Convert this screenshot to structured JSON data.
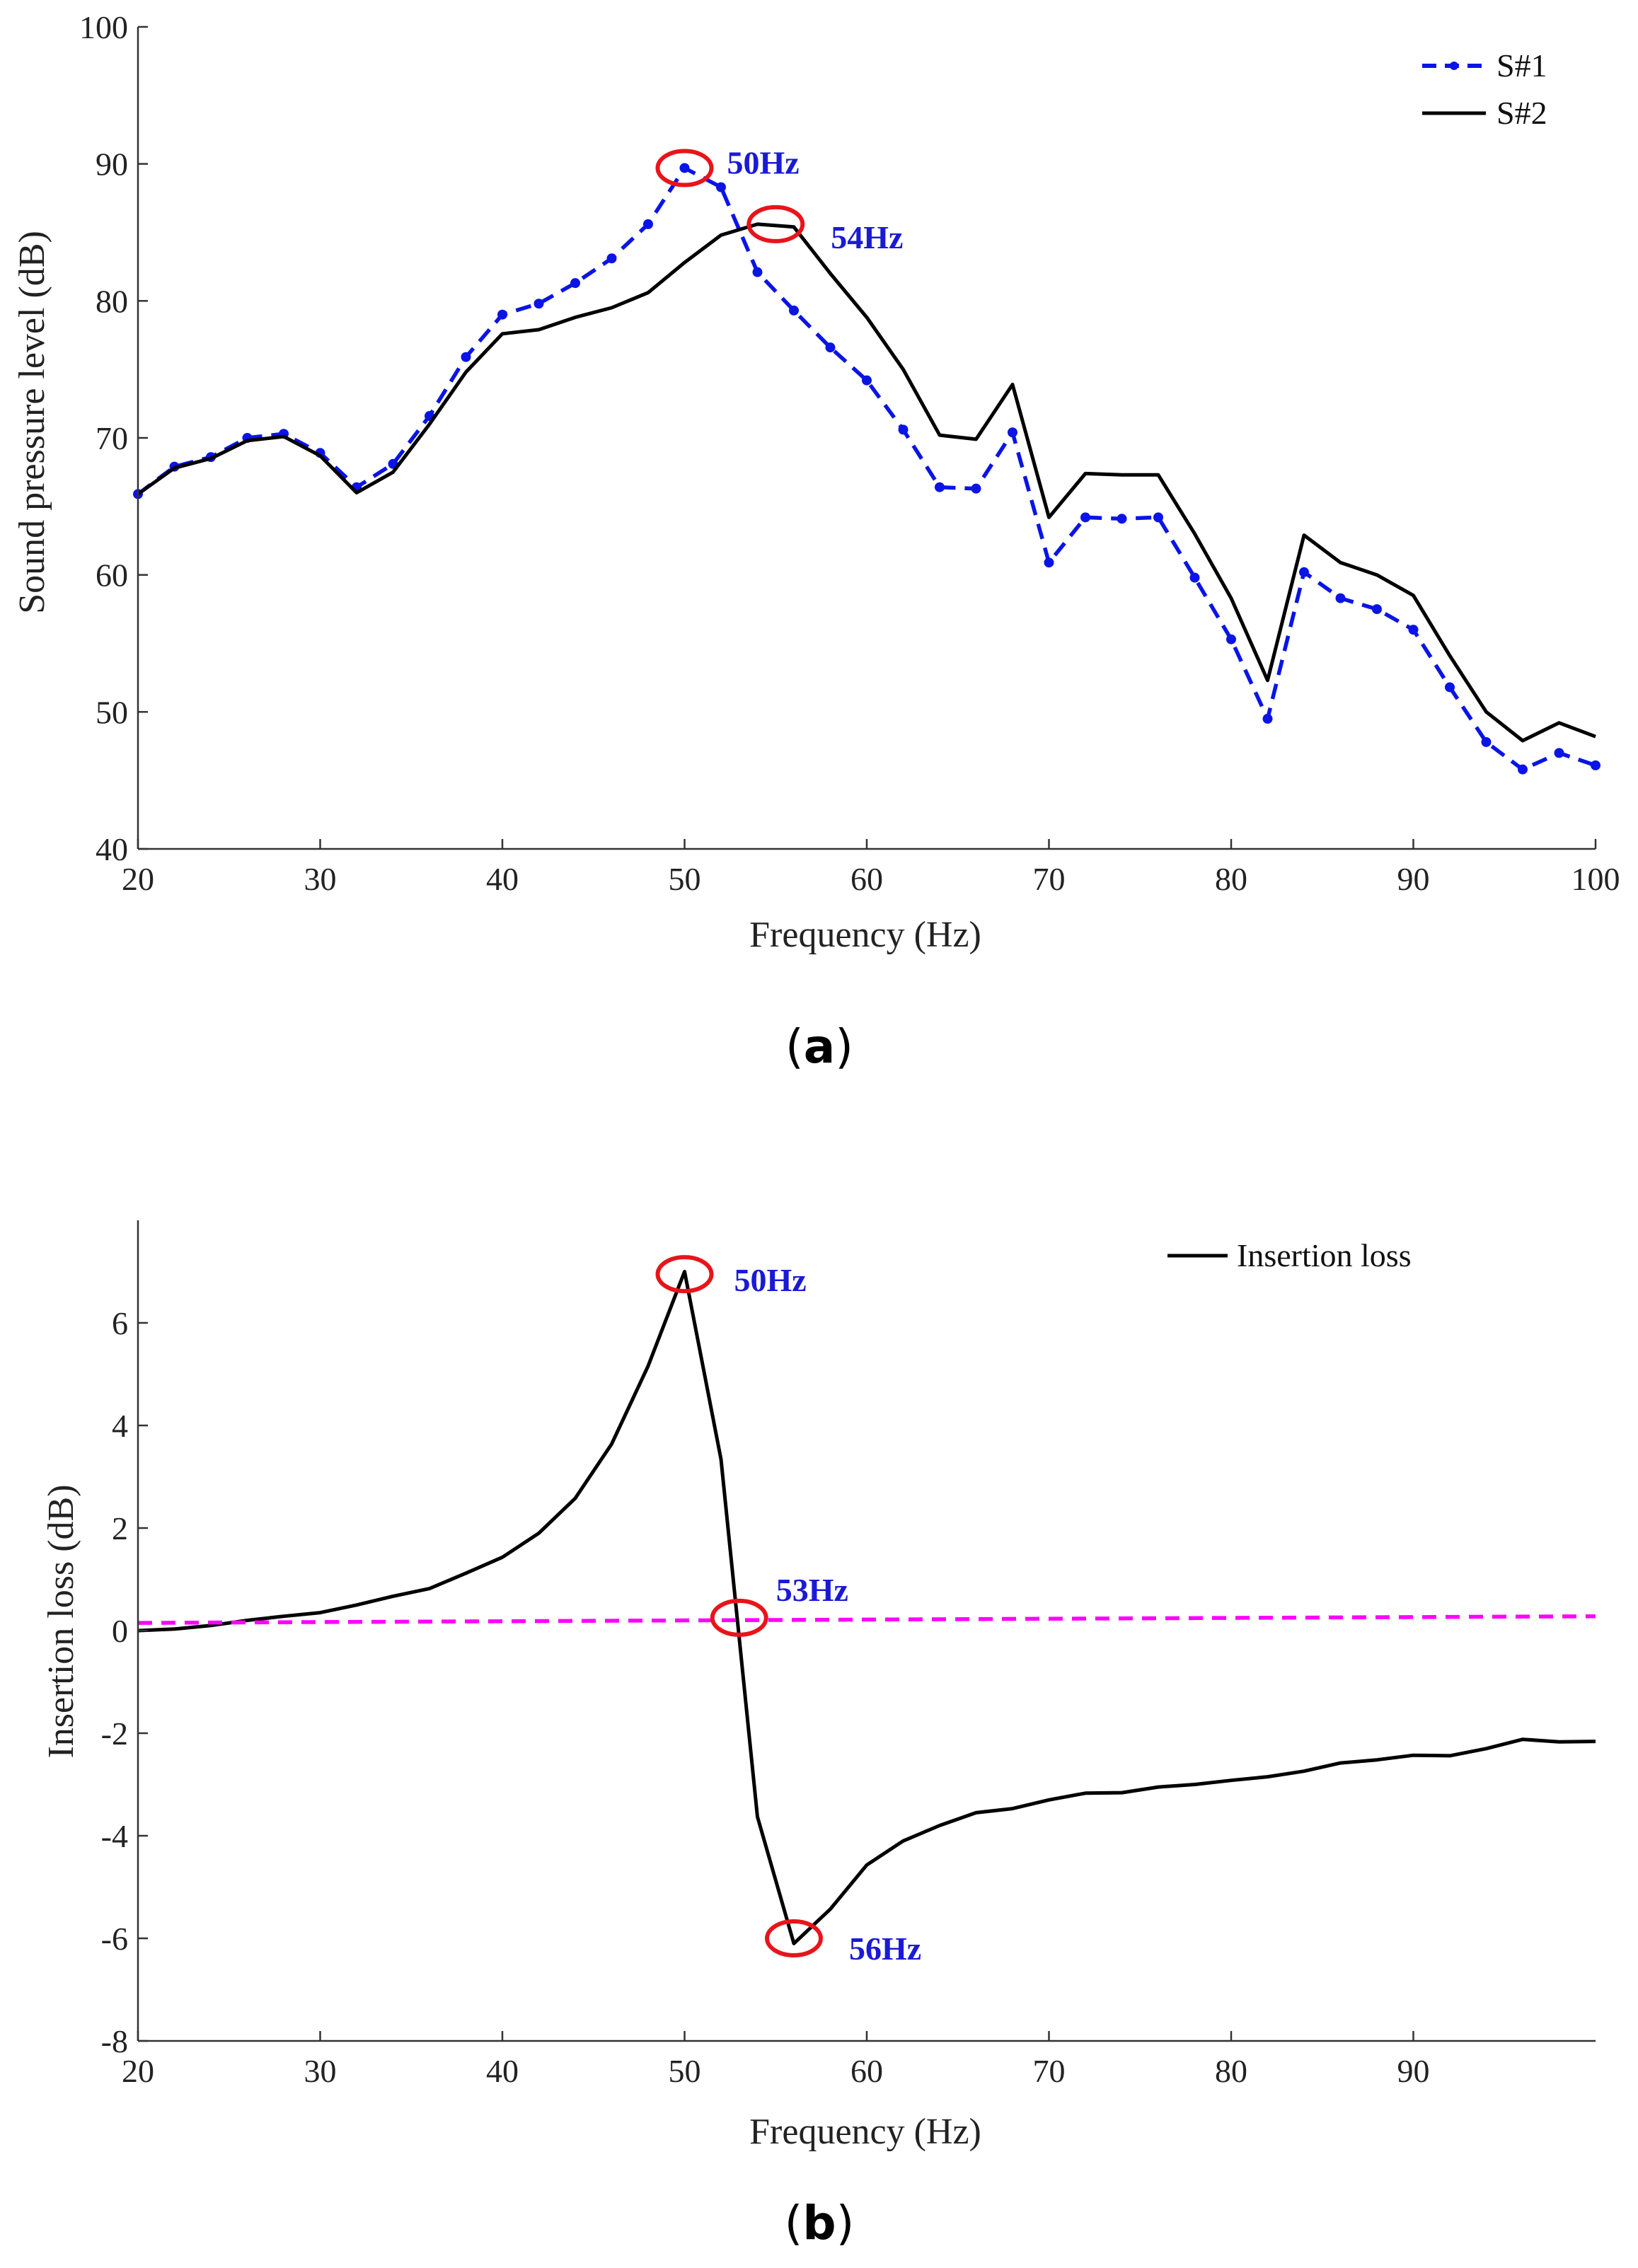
{
  "colors": {
    "s1": "#0a14e6",
    "s2": "#000000",
    "il": "#000000",
    "ref": "#ff00ff",
    "circle": "#e8141a",
    "annotation": "#1a1ad6",
    "axis": "#333333"
  },
  "chart_data": [
    {
      "type": "line",
      "panel_label": "a",
      "xlabel": "Frequency (Hz)",
      "ylabel": "Sound pressure level (dB)",
      "xlim": [
        20,
        100
      ],
      "ylim": [
        40,
        100
      ],
      "xticks": [
        20,
        30,
        40,
        50,
        60,
        70,
        80,
        90,
        100
      ],
      "yticks": [
        40,
        50,
        60,
        70,
        80,
        90,
        100
      ],
      "legend_position": "top-right",
      "series": [
        {
          "name": "S#1",
          "style": "dashed-dots",
          "color": "#0a14e6",
          "x": [
            20,
            22,
            24,
            26,
            28,
            30,
            32,
            34,
            36,
            38,
            40,
            42,
            44,
            46,
            48,
            50,
            52,
            54,
            56,
            58,
            60,
            62,
            64,
            66,
            68,
            70,
            72,
            74,
            76,
            78,
            80,
            82,
            84,
            86,
            88,
            90,
            92,
            94,
            96,
            98,
            100
          ],
          "y": [
            65.9,
            67.9,
            68.6,
            70.0,
            70.3,
            68.9,
            66.4,
            68.1,
            71.6,
            75.9,
            79.0,
            79.8,
            81.3,
            83.1,
            85.6,
            89.7,
            88.3,
            82.1,
            79.3,
            76.6,
            74.2,
            70.6,
            66.4,
            66.3,
            70.4,
            60.9,
            64.2,
            64.1,
            64.2,
            59.8,
            55.3,
            49.5,
            60.2,
            58.3,
            57.5,
            56.0,
            51.8,
            47.8,
            45.8,
            47.0,
            46.1
          ]
        },
        {
          "name": "S#2",
          "style": "solid",
          "color": "#000000",
          "x": [
            20,
            22,
            24,
            26,
            28,
            30,
            32,
            34,
            36,
            38,
            40,
            42,
            44,
            46,
            48,
            50,
            52,
            54,
            56,
            58,
            60,
            62,
            64,
            66,
            68,
            70,
            72,
            74,
            76,
            78,
            80,
            82,
            84,
            86,
            88,
            90,
            92,
            94,
            96,
            98,
            100
          ],
          "y": [
            65.9,
            67.8,
            68.5,
            69.8,
            70.1,
            68.7,
            66.0,
            67.5,
            71.0,
            74.8,
            77.6,
            77.9,
            78.8,
            79.5,
            80.6,
            82.8,
            84.8,
            85.6,
            85.4,
            82.0,
            78.8,
            75.0,
            70.2,
            69.9,
            73.9,
            64.2,
            67.4,
            67.3,
            67.3,
            63.0,
            58.3,
            52.3,
            62.9,
            60.9,
            60.0,
            58.5,
            54.1,
            50.0,
            47.9,
            49.2,
            48.2
          ]
        }
      ],
      "annotations": [
        {
          "label": "50Hz",
          "x": 50,
          "y": 89.7
        },
        {
          "label": "54Hz",
          "x": 55,
          "y": 85.6
        }
      ]
    },
    {
      "type": "line",
      "panel_label": "b",
      "xlabel": "Frequency (Hz)",
      "ylabel": "Insertion loss (dB)",
      "xlim": [
        20,
        100
      ],
      "ylim": [
        -8,
        8
      ],
      "xticks": [
        20,
        30,
        40,
        50,
        60,
        70,
        80,
        90
      ],
      "yticks": [
        -8,
        -6,
        -4,
        -2,
        0,
        2,
        4,
        6
      ],
      "legend_position": "top-right",
      "series": [
        {
          "name": "Insertion loss",
          "style": "solid",
          "color": "#000000",
          "x": [
            20,
            22,
            24,
            26,
            28,
            30,
            32,
            34,
            36,
            38,
            40,
            42,
            44,
            46,
            48,
            50,
            52,
            54,
            56,
            58,
            60,
            62,
            64,
            66,
            68,
            70,
            72,
            74,
            76,
            78,
            80,
            82,
            84,
            86,
            88,
            90,
            92,
            94,
            96,
            98,
            100
          ],
          "y": [
            0.0,
            0.03,
            0.1,
            0.2,
            0.28,
            0.35,
            0.5,
            0.67,
            0.82,
            1.12,
            1.43,
            1.9,
            2.58,
            3.64,
            5.16,
            7.0,
            3.34,
            -3.63,
            -6.1,
            -5.43,
            -4.57,
            -4.1,
            -3.8,
            -3.55,
            -3.47,
            -3.3,
            -3.17,
            -3.16,
            -3.05,
            -3.0,
            -2.92,
            -2.85,
            -2.74,
            -2.58,
            -2.52,
            -2.43,
            -2.44,
            -2.3,
            -2.12,
            -2.17,
            -2.16
          ]
        },
        {
          "name": "",
          "style": "dashed",
          "color": "#ff00ff",
          "x": [
            20,
            100
          ],
          "y": [
            0.15,
            0.28
          ]
        }
      ],
      "annotations": [
        {
          "label": "50Hz",
          "x": 50,
          "y": 6.95
        },
        {
          "label": "53Hz",
          "x": 53,
          "y": 0.25
        },
        {
          "label": "56Hz",
          "x": 56,
          "y": -6.0
        }
      ]
    }
  ]
}
